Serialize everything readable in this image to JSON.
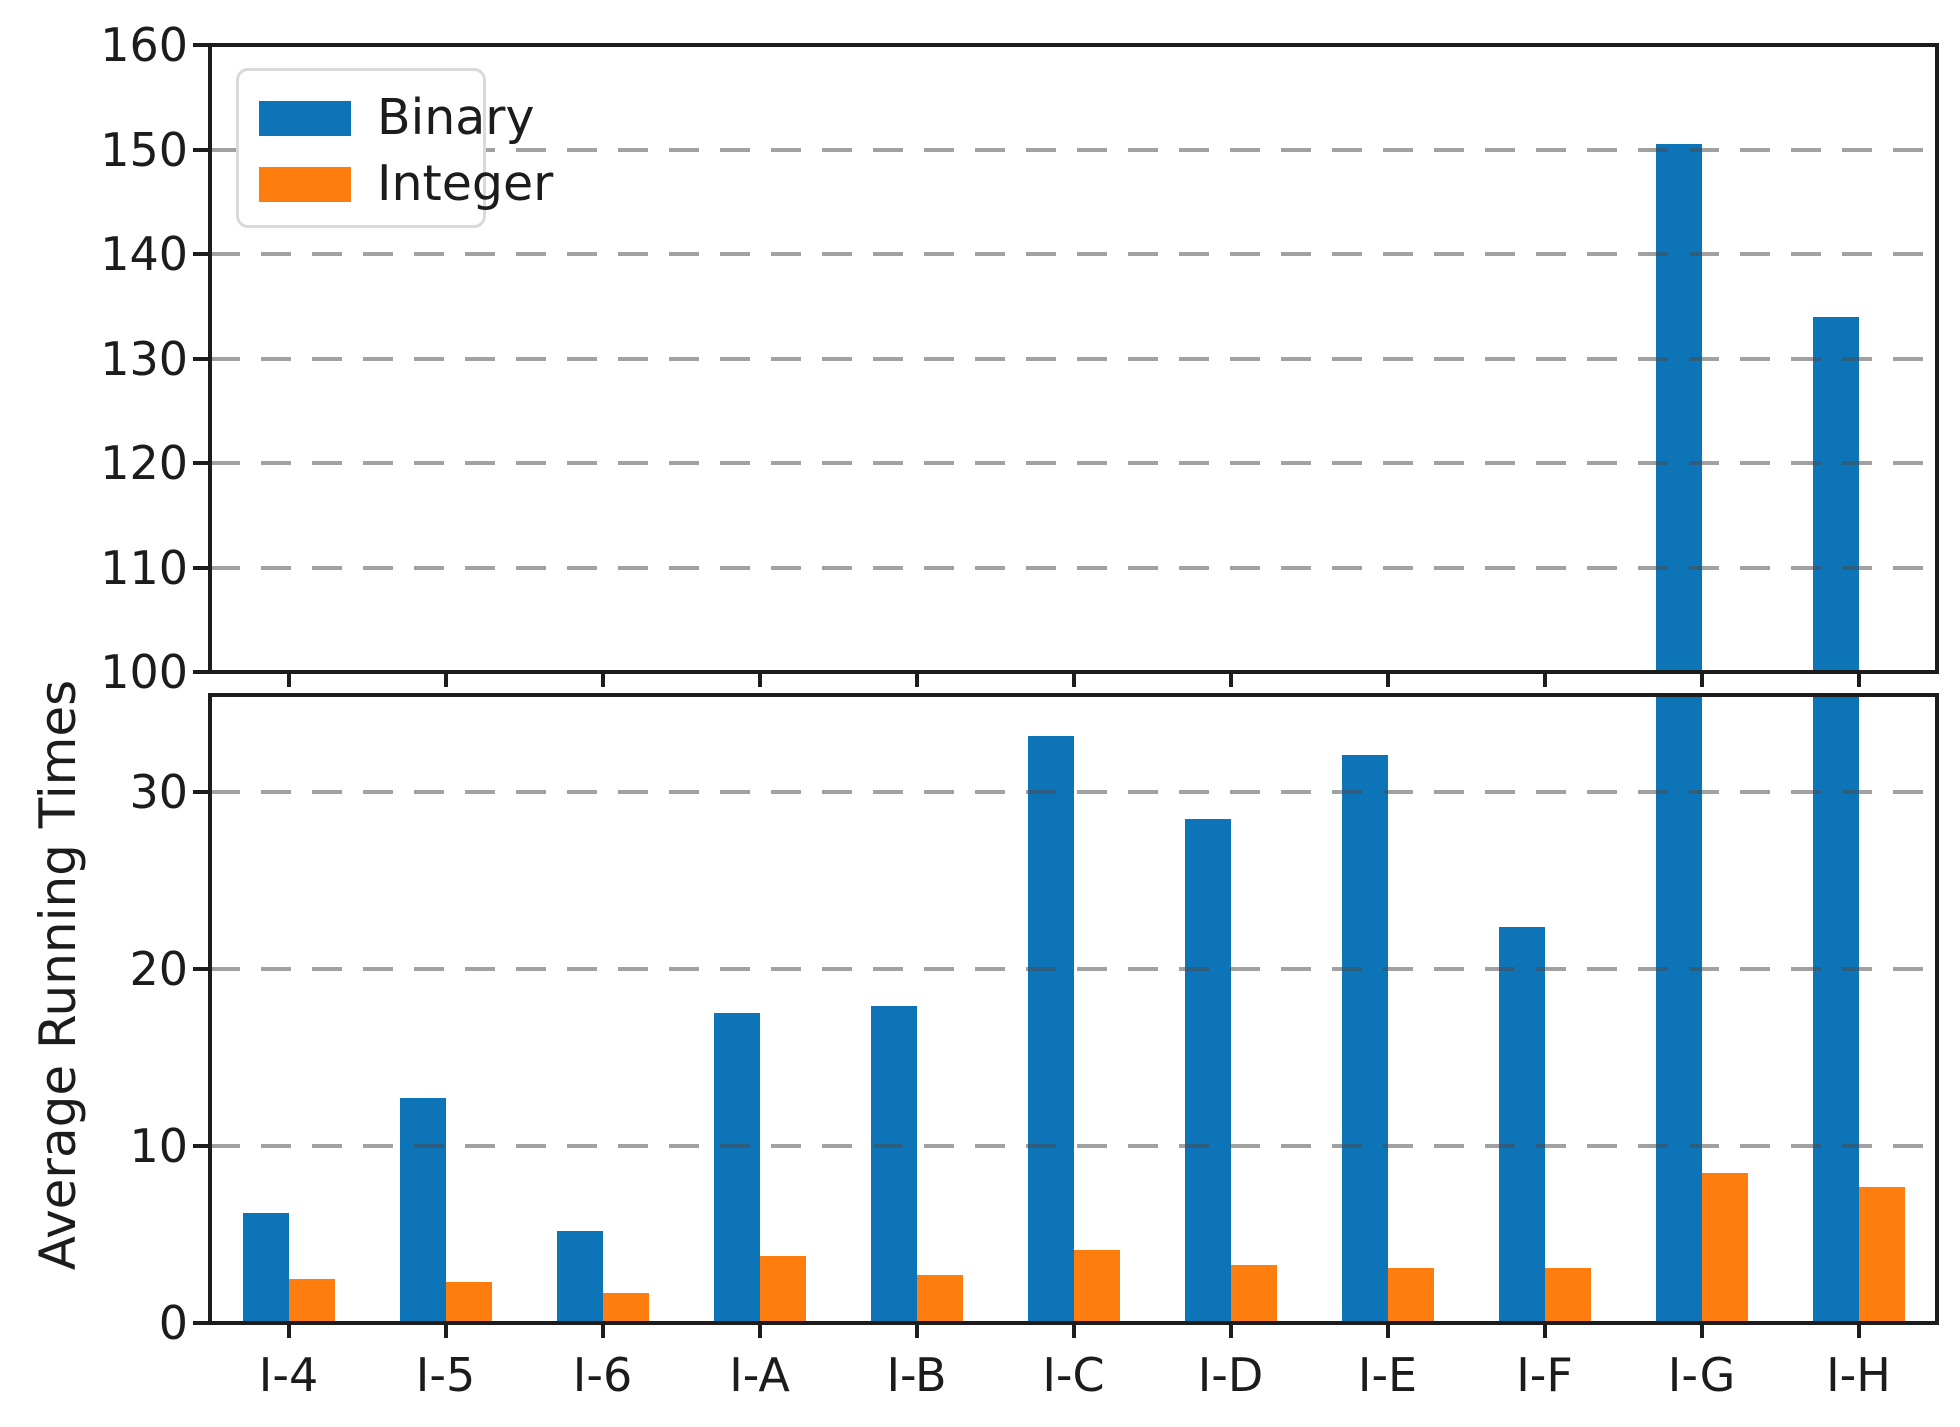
{
  "chart_data": {
    "type": "bar",
    "title": "",
    "ylabel": "Average Running Times",
    "xlabel": "",
    "categories": [
      "I-4",
      "I-5",
      "I-6",
      "I-A",
      "I-B",
      "I-C",
      "I-D",
      "I-E",
      "I-F",
      "I-G",
      "I-H"
    ],
    "series": [
      {
        "name": "Binary",
        "color": "#0d74b8",
        "values": [
          6.2,
          12.7,
          5.2,
          17.5,
          17.9,
          33.2,
          28.5,
          32.1,
          22.4,
          150.5,
          134.0
        ]
      },
      {
        "name": "Integer",
        "color": "#fd7e0e",
        "values": [
          2.5,
          2.3,
          1.7,
          3.8,
          2.7,
          4.1,
          3.3,
          3.1,
          3.1,
          8.5,
          7.7
        ]
      }
    ],
    "broken_axis_panels": [
      {
        "position": "top",
        "ylim": [
          100,
          160
        ],
        "yticks": [
          100,
          110,
          120,
          130,
          140,
          150,
          160
        ]
      },
      {
        "position": "bottom",
        "ylim": [
          0,
          35.5
        ],
        "yticks": [
          0,
          10,
          20,
          30
        ]
      }
    ],
    "legend": {
      "position": "upper left",
      "entries": [
        "Binary",
        "Integer"
      ]
    },
    "grid": {
      "axis": "y",
      "style": "dashed",
      "color": "#9a9a9a"
    },
    "axis_color": "#1c1c1c"
  }
}
